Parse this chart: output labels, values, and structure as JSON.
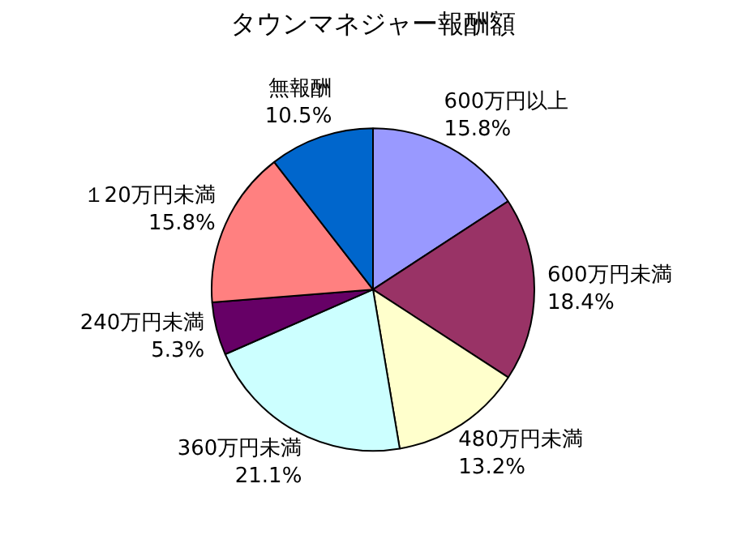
{
  "chart_data": {
    "type": "pie",
    "title": "タウンマネジャー報酬額",
    "categories": [
      "600万円以上",
      "600万円未満",
      "480万円未満",
      "360万円未満",
      "240万円未満",
      "１20万円未満",
      "無報酬"
    ],
    "values": [
      15.8,
      18.4,
      13.2,
      21.1,
      5.3,
      15.8,
      10.5
    ],
    "value_labels": [
      "15.8%",
      "18.4%",
      "13.2%",
      "21.1%",
      "5.3%",
      "15.8%",
      "10.5%"
    ],
    "colors": [
      "#9999ff",
      "#993366",
      "#ffffcc",
      "#ccffff",
      "#660066",
      "#ff8080",
      "#0066cc"
    ],
    "legend": false
  }
}
